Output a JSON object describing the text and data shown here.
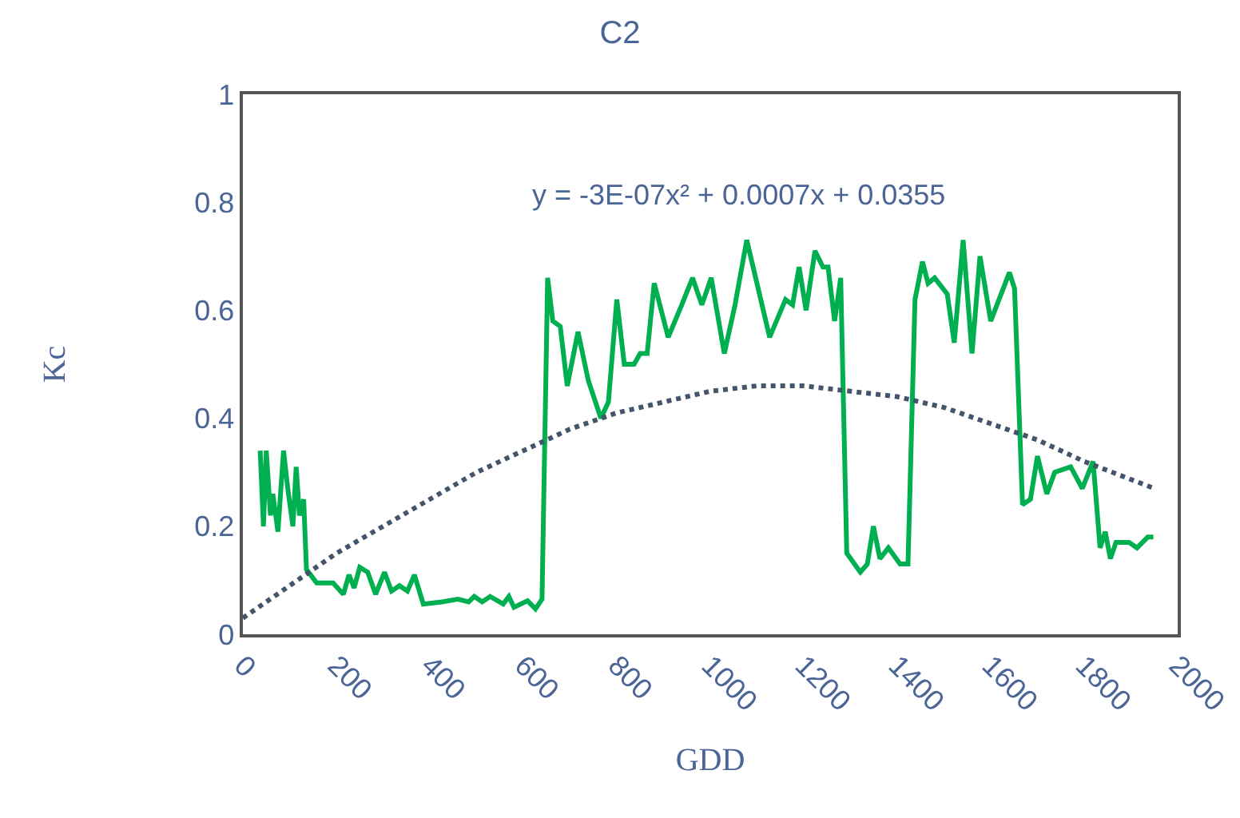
{
  "chart_data": {
    "type": "line",
    "title": "C2",
    "xlabel": "GDD",
    "ylabel": "Kc",
    "annotations": [
      "y = -3E-07x² + 0.0007x + 0.0355"
    ],
    "xlim": [
      0,
      2000
    ],
    "xticks": [
      0,
      200,
      400,
      600,
      800,
      1000,
      1200,
      1400,
      1600,
      1800,
      2000
    ],
    "ylim": [
      0,
      1
    ],
    "yticks": [
      0,
      0.2,
      0.4,
      0.6,
      0.8,
      1
    ],
    "grid": false,
    "marker": "none",
    "series": [
      {
        "color": "#00b050",
        "line_style": "solid",
        "x": [
          37,
          44,
          50,
          59,
          64,
          75,
          87,
          96,
          107,
          114,
          121,
          130,
          136,
          158,
          193,
          215,
          227,
          238,
          250,
          267,
          284,
          303,
          318,
          335,
          352,
          367,
          386,
          426,
          460,
          483,
          495,
          512,
          529,
          557,
          569,
          580,
          609,
          626,
          640,
          652,
          663,
          679,
          694,
          717,
          739,
          766,
          782,
          800,
          816,
          837,
          850,
          865,
          880,
          910,
          939,
          962,
          982,
          1002,
          1030,
          1053,
          1078,
          1127,
          1161,
          1176,
          1190,
          1205,
          1224,
          1241,
          1252,
          1266,
          1279,
          1292,
          1321,
          1336,
          1349,
          1363,
          1381,
          1406,
          1423,
          1438,
          1454,
          1466,
          1480,
          1507,
          1522,
          1541,
          1560,
          1577,
          1600,
          1640,
          1651,
          1668,
          1685,
          1700,
          1720,
          1737,
          1771,
          1796,
          1819,
          1834,
          1845,
          1856,
          1868,
          1896,
          1913,
          1936,
          1948
        ],
        "values": [
          0.34,
          0.2,
          0.34,
          0.22,
          0.26,
          0.19,
          0.34,
          0.27,
          0.2,
          0.31,
          0.22,
          0.25,
          0.12,
          0.095,
          0.095,
          0.074,
          0.11,
          0.086,
          0.124,
          0.115,
          0.074,
          0.115,
          0.08,
          0.09,
          0.08,
          0.11,
          0.056,
          0.06,
          0.065,
          0.06,
          0.07,
          0.06,
          0.07,
          0.056,
          0.07,
          0.05,
          0.062,
          0.047,
          0.065,
          0.66,
          0.58,
          0.57,
          0.46,
          0.56,
          0.47,
          0.4,
          0.43,
          0.62,
          0.5,
          0.5,
          0.52,
          0.52,
          0.65,
          0.55,
          0.61,
          0.66,
          0.61,
          0.66,
          0.52,
          0.61,
          0.73,
          0.55,
          0.62,
          0.61,
          0.68,
          0.6,
          0.71,
          0.68,
          0.68,
          0.58,
          0.66,
          0.15,
          0.115,
          0.13,
          0.2,
          0.14,
          0.16,
          0.13,
          0.13,
          0.62,
          0.69,
          0.65,
          0.66,
          0.63,
          0.54,
          0.73,
          0.52,
          0.7,
          0.58,
          0.67,
          0.64,
          0.24,
          0.25,
          0.33,
          0.26,
          0.3,
          0.31,
          0.27,
          0.32,
          0.16,
          0.19,
          0.14,
          0.17,
          0.17,
          0.16,
          0.18,
          0.18
        ]
      },
      {
        "color": "#44546a",
        "line_style": "dotted",
        "x": [
          0,
          100,
          200,
          300,
          400,
          500,
          600,
          700,
          800,
          900,
          1000,
          1100,
          1200,
          1300,
          1400,
          1500,
          1600,
          1700,
          1800,
          1950
        ],
        "values": [
          0.03,
          0.09,
          0.15,
          0.2,
          0.25,
          0.3,
          0.34,
          0.38,
          0.41,
          0.43,
          0.45,
          0.46,
          0.46,
          0.45,
          0.44,
          0.42,
          0.39,
          0.36,
          0.32,
          0.27
        ]
      }
    ]
  }
}
